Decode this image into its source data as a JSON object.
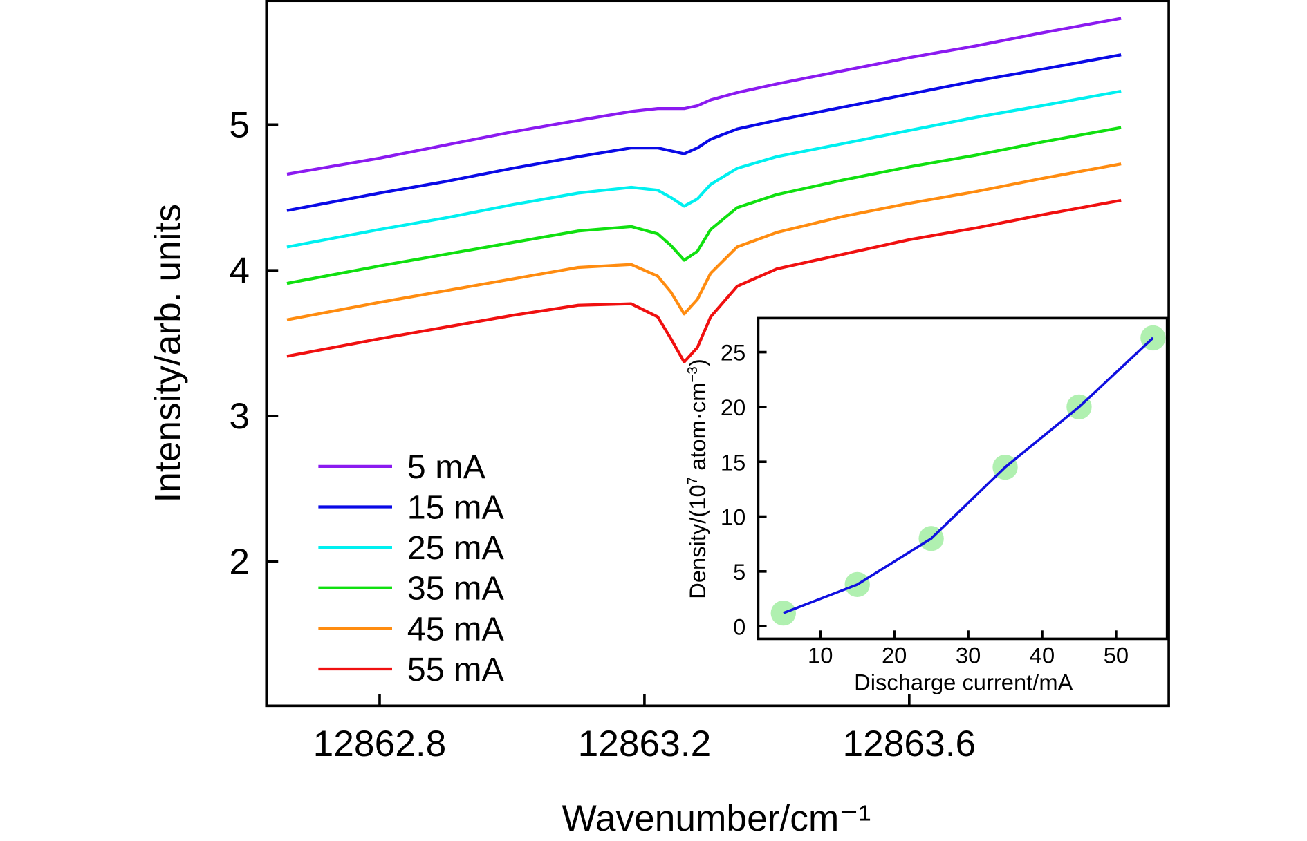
{
  "chart_data": [
    {
      "type": "line",
      "xlabel": "Wavenumber/cm⁻¹",
      "ylabel": "Intensity/arb. units",
      "xlim": [
        12862.629,
        12863.992
      ],
      "ylim": [
        1.01,
        5.85
      ],
      "xticks": [
        "12862.8",
        "12863.2",
        "12863.6"
      ],
      "xtick_values": [
        12862.8,
        12863.2,
        12863.6
      ],
      "yticks": [
        "2",
        "3",
        "4",
        "5"
      ],
      "ytick_values": [
        2,
        3,
        4,
        5
      ],
      "grid": false,
      "legend_position": "bottom-left",
      "x": [
        12862.66,
        12862.8,
        12862.9,
        12863.0,
        12863.1,
        12863.18,
        12863.22,
        12863.24,
        12863.26,
        12863.28,
        12863.3,
        12863.34,
        12863.4,
        12863.5,
        12863.6,
        12863.7,
        12863.8,
        12863.92
      ],
      "series": [
        {
          "name": "5  mA",
          "color": "#8B1AF0",
          "values": [
            4.66,
            4.77,
            4.86,
            4.95,
            5.03,
            5.09,
            5.11,
            5.11,
            5.11,
            5.13,
            5.17,
            5.22,
            5.28,
            5.37,
            5.46,
            5.54,
            5.63,
            5.73
          ]
        },
        {
          "name": "15 mA",
          "color": "#0A0AE6",
          "values": [
            4.41,
            4.53,
            4.61,
            4.7,
            4.78,
            4.84,
            4.84,
            4.82,
            4.8,
            4.84,
            4.9,
            4.97,
            5.03,
            5.12,
            5.21,
            5.3,
            5.38,
            5.48
          ]
        },
        {
          "name": "25 mA",
          "color": "#00F0F0",
          "values": [
            4.16,
            4.28,
            4.36,
            4.45,
            4.53,
            4.57,
            4.55,
            4.5,
            4.44,
            4.49,
            4.59,
            4.7,
            4.78,
            4.87,
            4.96,
            5.05,
            5.13,
            5.23
          ]
        },
        {
          "name": "35 mA",
          "color": "#10E010",
          "values": [
            3.91,
            4.03,
            4.11,
            4.19,
            4.27,
            4.3,
            4.25,
            4.17,
            4.07,
            4.13,
            4.28,
            4.43,
            4.52,
            4.62,
            4.71,
            4.79,
            4.88,
            4.98
          ]
        },
        {
          "name": "45 mA",
          "color": "#FF8C10",
          "values": [
            3.66,
            3.78,
            3.86,
            3.94,
            4.02,
            4.04,
            3.96,
            3.85,
            3.7,
            3.8,
            3.98,
            4.16,
            4.26,
            4.37,
            4.46,
            4.54,
            4.63,
            4.73
          ]
        },
        {
          "name": "55 mA",
          "color": "#F01010",
          "values": [
            3.41,
            3.53,
            3.61,
            3.69,
            3.76,
            3.77,
            3.68,
            3.53,
            3.37,
            3.47,
            3.68,
            3.89,
            4.01,
            4.11,
            4.21,
            4.29,
            4.38,
            4.48
          ]
        }
      ]
    },
    {
      "type": "line",
      "xlabel": "Discharge current/mA",
      "ylabel_parts": {
        "pre": "Density/(10",
        "sup": "7",
        "post": " atom·cm",
        "sup2": "−3",
        "end": ")"
      },
      "xlim": [
        1.6,
        56.9
      ],
      "ylim": [
        -1.15,
        28.1
      ],
      "xticks": [
        "10",
        "20",
        "30",
        "40",
        "50"
      ],
      "xtick_values": [
        10,
        20,
        30,
        40,
        50
      ],
      "yticks": [
        "0",
        "5",
        "10",
        "15",
        "20",
        "25"
      ],
      "ytick_values": [
        0,
        5,
        10,
        15,
        20,
        25
      ],
      "grid": false,
      "x": [
        5,
        15,
        25,
        35,
        45,
        55
      ],
      "values": [
        1.2,
        3.8,
        8.0,
        14.5,
        20.0,
        26.3
      ],
      "line_color": "#1010E0",
      "marker_color": "#B0F0B0"
    }
  ]
}
